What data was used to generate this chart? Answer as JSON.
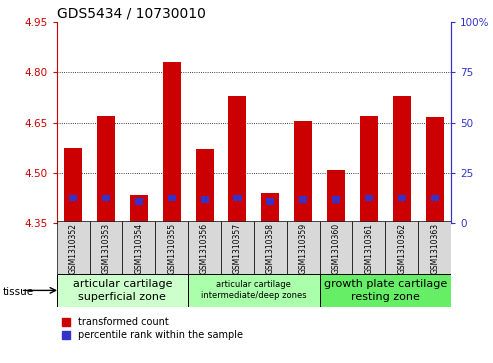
{
  "title": "GDS5434 / 10730010",
  "samples": [
    "GSM1310352",
    "GSM1310353",
    "GSM1310354",
    "GSM1310355",
    "GSM1310356",
    "GSM1310357",
    "GSM1310358",
    "GSM1310359",
    "GSM1310360",
    "GSM1310361",
    "GSM1310362",
    "GSM1310363"
  ],
  "red_values": [
    4.575,
    4.67,
    4.435,
    4.83,
    4.57,
    4.73,
    4.44,
    4.655,
    4.51,
    4.67,
    4.73,
    4.665
  ],
  "blue_bottoms": [
    4.415,
    4.415,
    4.405,
    4.415,
    4.41,
    4.415,
    4.405,
    4.41,
    4.41,
    4.415,
    4.415,
    4.415
  ],
  "blue_heights": [
    0.02,
    0.02,
    0.02,
    0.02,
    0.02,
    0.02,
    0.02,
    0.02,
    0.02,
    0.02,
    0.02,
    0.02
  ],
  "base": 4.35,
  "ylim_left": [
    4.35,
    4.95
  ],
  "ylim_right": [
    0,
    100
  ],
  "yticks_left": [
    4.35,
    4.5,
    4.65,
    4.8,
    4.95
  ],
  "yticks_right": [
    0,
    25,
    50,
    75,
    100
  ],
  "grid_lines": [
    4.5,
    4.65,
    4.8
  ],
  "group_defs": [
    {
      "start": 0,
      "end": 3,
      "color": "#ccffcc",
      "label": "articular cartilage\nsuperficial zone",
      "fontsize": 8
    },
    {
      "start": 4,
      "end": 7,
      "color": "#aaffaa",
      "label": "articular cartilage\nintermediate/deep zones",
      "fontsize": 6
    },
    {
      "start": 8,
      "end": 11,
      "color": "#66ee66",
      "label": "growth plate cartilage\nresting zone",
      "fontsize": 8
    }
  ],
  "tissue_label": "tissue",
  "legend_red": "transformed count",
  "legend_blue": "percentile rank within the sample",
  "bar_width": 0.55,
  "bar_color_red": "#cc0000",
  "bar_color_blue": "#3333cc",
  "axis_color_left": "#cc0000",
  "axis_color_right": "#3333cc",
  "tick_area_color": "#d8d8d8",
  "title_fontsize": 10
}
